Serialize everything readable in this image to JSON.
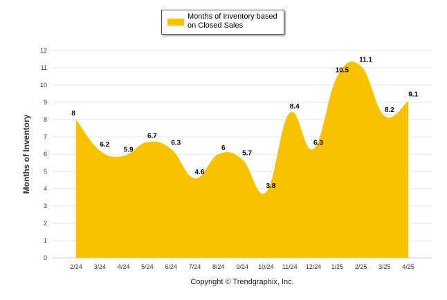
{
  "legend": {
    "label": "Months of Inventory based on Closed Sales"
  },
  "copyright": "Copyright © Trendgraphix, Inc.",
  "chart_data": {
    "type": "area",
    "categories": [
      "2/24",
      "3/24",
      "4/24",
      "5/24",
      "6/24",
      "7/24",
      "8/24",
      "9/24",
      "10/24",
      "11/24",
      "12/24",
      "1/25",
      "2/25",
      "3/25",
      "4/25"
    ],
    "series": [
      {
        "name": "Months of Inventory based on Closed Sales",
        "values": [
          8,
          6.2,
          5.9,
          6.7,
          6.3,
          4.6,
          6,
          5.7,
          3.8,
          8.4,
          6.3,
          10.5,
          11.1,
          8.2,
          9.1
        ]
      }
    ],
    "data_labels": [
      "8",
      "6.2",
      "5.9",
      "6.7",
      "6.3",
      "4.6",
      "6",
      "5.7",
      "3.8",
      "8.4",
      "6.3",
      "10.5",
      "11.1",
      "8.2",
      "9.1"
    ],
    "yticks": [
      0,
      1,
      2,
      3,
      4,
      5,
      6,
      7,
      8,
      9,
      10,
      11,
      12
    ],
    "ylabel": "Months of Inventory",
    "xlabel": "",
    "ylim": [
      0,
      12
    ],
    "grid": true,
    "legend_position": "top-center",
    "colors": {
      "fill": "#F7C200",
      "grid": "#e6e6e6",
      "axis": "#cccccc"
    }
  }
}
